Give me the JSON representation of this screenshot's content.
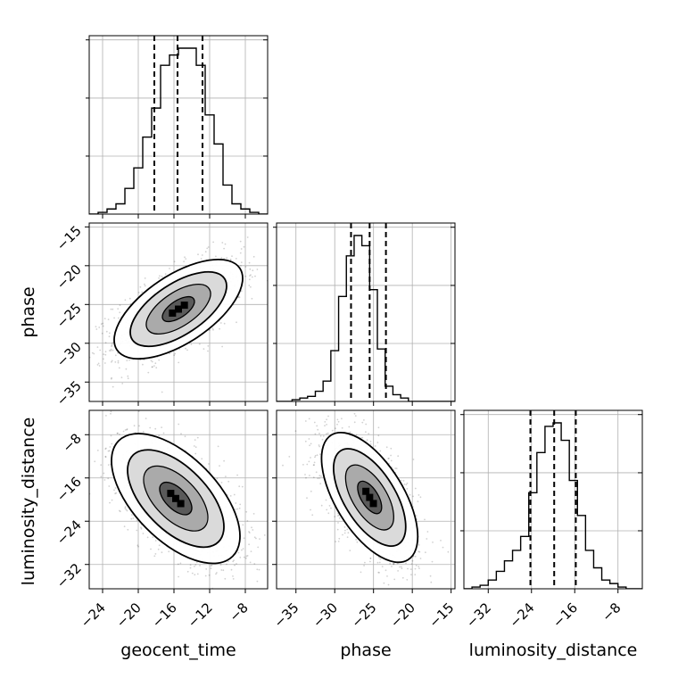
{
  "chart_data": {
    "type": "corner",
    "parameters": [
      "geocent_time",
      "phase",
      "luminosity_distance"
    ],
    "axis_labels": {
      "geocent_time": "geocent_time",
      "phase": "phase",
      "luminosity_distance": "luminosity_distance"
    },
    "ranges": {
      "geocent_time": [
        -25.5,
        -5.5
      ],
      "phase": [
        -37.5,
        -14.5
      ],
      "luminosity_distance": [
        -36.5,
        -3.5
      ]
    },
    "ticks": {
      "geocent_time": [
        -24,
        -20,
        -16,
        -12,
        -8
      ],
      "phase": [
        -35,
        -30,
        -25,
        -20,
        -15
      ],
      "luminosity_distance": [
        -32,
        -24,
        -16,
        -8
      ]
    },
    "quantiles": {
      "geocent_time": [
        -18.2,
        -15.6,
        -12.8
      ],
      "phase": [
        -27.9,
        -25.5,
        -23.4
      ],
      "luminosity_distance": [
        -24.2,
        -19.8,
        -15.8
      ]
    },
    "histograms": {
      "geocent_time": {
        "edges": [
          -25.5,
          -24.5,
          -23.5,
          -22.5,
          -21.5,
          -20.5,
          -19.5,
          -18.5,
          -17.5,
          -16.5,
          -15.5,
          -14.5,
          -13.5,
          -12.5,
          -11.5,
          -10.5,
          -9.5,
          -8.5,
          -7.5,
          -6.5,
          -5.5
        ],
        "counts": [
          0.0,
          0.01,
          0.03,
          0.06,
          0.15,
          0.27,
          0.45,
          0.62,
          0.87,
          0.93,
          0.97,
          0.97,
          0.87,
          0.58,
          0.41,
          0.17,
          0.06,
          0.03,
          0.01,
          0.0
        ]
      },
      "phase": {
        "edges": [
          -37.5,
          -36.5,
          -35.5,
          -34.5,
          -33.5,
          -32.5,
          -31.5,
          -30.5,
          -29.5,
          -28.5,
          -27.5,
          -26.5,
          -25.5,
          -24.5,
          -23.5,
          -22.5,
          -21.5,
          -20.5,
          -19.5,
          -18.5,
          -17.5,
          -16.5,
          -15.5,
          -14.5
        ],
        "counts": [
          0.0,
          0.0,
          0.01,
          0.02,
          0.03,
          0.06,
          0.12,
          0.3,
          0.62,
          0.86,
          0.98,
          0.92,
          0.66,
          0.31,
          0.09,
          0.04,
          0.02,
          0.0,
          0.0,
          0.0,
          0.0,
          0.0,
          0.0
        ]
      },
      "luminosity_distance": {
        "edges": [
          -36.5,
          -35.0,
          -33.5,
          -32.0,
          -30.5,
          -29.0,
          -27.5,
          -26.0,
          -24.5,
          -23.0,
          -21.5,
          -20.0,
          -18.5,
          -17.0,
          -15.5,
          -14.0,
          -12.5,
          -11.0,
          -9.5,
          -8.0,
          -6.5,
          -5.0,
          -3.5
        ],
        "counts": [
          0.0,
          0.01,
          0.02,
          0.05,
          0.1,
          0.16,
          0.22,
          0.3,
          0.55,
          0.78,
          0.93,
          0.95,
          0.85,
          0.62,
          0.42,
          0.22,
          0.12,
          0.05,
          0.03,
          0.01,
          0.0,
          0.0
        ]
      }
    },
    "pairs": [
      {
        "x": "geocent_time",
        "y": "phase",
        "center": [
          -15.5,
          -25.6
        ],
        "std": [
          3.6,
          3.2
        ],
        "correlation": 0.62
      },
      {
        "x": "geocent_time",
        "y": "luminosity_distance",
        "center": [
          -15.8,
          -19.8
        ],
        "std": [
          3.6,
          6.0
        ],
        "correlation": -0.58
      },
      {
        "x": "phase",
        "y": "luminosity_distance",
        "center": [
          -25.5,
          -19.6
        ],
        "std": [
          3.1,
          6.0
        ],
        "correlation": -0.6
      }
    ],
    "contour_levels_sigma": [
      0.5,
      1.0,
      1.5,
      2.0
    ],
    "grid": true,
    "quantile_line_style": "dashed"
  }
}
